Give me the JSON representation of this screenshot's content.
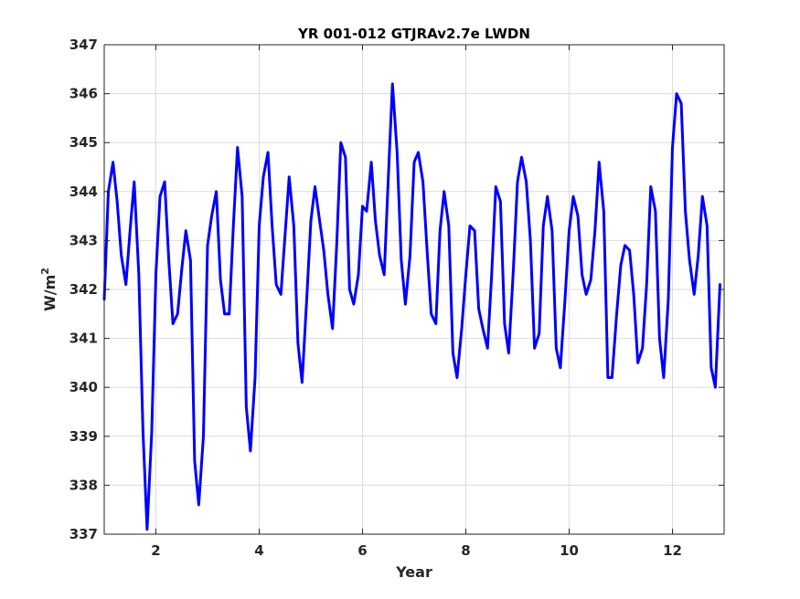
{
  "chart_data": {
    "type": "line",
    "title": "YR 001-012 GTJRAv2.7e LWDN",
    "xlabel": "Year",
    "ylabel": "W/m",
    "ylabel_superscript": "2",
    "xlim": [
      1,
      13
    ],
    "ylim": [
      337,
      347
    ],
    "xticks": [
      2,
      4,
      6,
      8,
      10,
      12
    ],
    "yticks": [
      337,
      338,
      339,
      340,
      341,
      342,
      343,
      344,
      345,
      346,
      347
    ],
    "xtick_labels": [
      "2",
      "4",
      "6",
      "8",
      "10",
      "12"
    ],
    "ytick_labels": [
      "337",
      "338",
      "339",
      "340",
      "341",
      "342",
      "343",
      "344",
      "345",
      "346",
      "347"
    ],
    "grid": true,
    "line_color": "#0000ff",
    "series": [
      {
        "x": [
          1.0,
          1.08,
          1.17,
          1.25,
          1.33,
          1.42,
          1.5,
          1.58,
          1.67,
          1.75,
          1.83,
          1.92,
          2.0,
          2.08,
          2.17,
          2.25,
          2.33,
          2.42,
          2.5,
          2.58,
          2.67,
          2.75,
          2.83,
          2.92,
          3.0,
          3.08,
          3.17,
          3.25,
          3.33,
          3.42,
          3.5,
          3.58,
          3.67,
          3.75,
          3.83,
          3.92,
          4.0,
          4.08,
          4.17,
          4.25,
          4.33,
          4.42,
          4.5,
          4.58,
          4.67,
          4.75,
          4.83,
          4.92,
          5.0,
          5.08,
          5.17,
          5.25,
          5.33,
          5.42,
          5.5,
          5.58,
          5.67,
          5.75,
          5.83,
          5.92,
          6.0,
          6.08,
          6.17,
          6.25,
          6.33,
          6.42,
          6.5,
          6.58,
          6.67,
          6.75,
          6.83,
          6.92,
          7.0,
          7.08,
          7.17,
          7.25,
          7.33,
          7.42,
          7.5,
          7.58,
          7.67,
          7.75,
          7.83,
          7.92,
          8.0,
          8.08,
          8.17,
          8.25,
          8.33,
          8.42,
          8.5,
          8.58,
          8.67,
          8.75,
          8.83,
          8.92,
          9.0,
          9.08,
          9.17,
          9.25,
          9.33,
          9.42,
          9.5,
          9.58,
          9.67,
          9.75,
          9.83,
          9.92,
          10.0,
          10.08,
          10.17,
          10.25,
          10.33,
          10.42,
          10.5,
          10.58,
          10.67,
          10.75,
          10.83,
          10.92,
          11.0,
          11.08,
          11.17,
          11.25,
          11.33,
          11.42,
          11.5,
          11.58,
          11.67,
          11.75,
          11.83,
          11.92,
          12.0,
          12.08,
          12.17,
          12.25,
          12.33,
          12.42,
          12.5,
          12.58,
          12.67,
          12.75,
          12.83,
          12.92
        ],
        "values": [
          341.8,
          344.0,
          344.6,
          343.8,
          342.7,
          342.1,
          343.2,
          344.2,
          342.3,
          339.1,
          337.1,
          339.1,
          342.3,
          343.9,
          344.2,
          342.6,
          341.3,
          341.5,
          342.4,
          343.2,
          342.6,
          338.5,
          337.6,
          339.0,
          342.9,
          343.5,
          344.0,
          342.2,
          341.5,
          341.5,
          343.3,
          344.9,
          343.9,
          339.6,
          338.7,
          340.2,
          343.3,
          344.3,
          344.8,
          343.3,
          342.1,
          341.9,
          343.1,
          344.3,
          343.3,
          340.9,
          340.1,
          341.8,
          343.4,
          344.1,
          343.4,
          342.8,
          341.9,
          341.2,
          342.9,
          345.0,
          344.7,
          342.0,
          341.7,
          342.3,
          343.7,
          343.6,
          344.6,
          343.4,
          342.7,
          342.3,
          344.3,
          346.2,
          344.8,
          342.6,
          341.7,
          342.7,
          344.6,
          344.8,
          344.2,
          342.8,
          341.5,
          341.3,
          343.2,
          344.0,
          343.3,
          340.7,
          340.2,
          341.2,
          342.3,
          343.3,
          343.2,
          341.6,
          341.2,
          340.8,
          342.3,
          344.1,
          343.8,
          341.3,
          340.7,
          342.4,
          344.2,
          344.7,
          344.2,
          343.0,
          340.8,
          341.1,
          343.3,
          343.9,
          343.2,
          340.8,
          340.4,
          341.8,
          343.2,
          343.9,
          343.5,
          342.3,
          341.9,
          342.2,
          343.2,
          344.6,
          343.6,
          340.2,
          340.2,
          341.5,
          342.5,
          342.9,
          342.8,
          341.9,
          340.5,
          340.8,
          342.1,
          344.1,
          343.6,
          341.0,
          340.2,
          341.8,
          344.9,
          346.0,
          345.8,
          343.6,
          342.6,
          341.9,
          342.7,
          343.9,
          343.3,
          340.4,
          340.0,
          342.1
        ]
      }
    ]
  }
}
